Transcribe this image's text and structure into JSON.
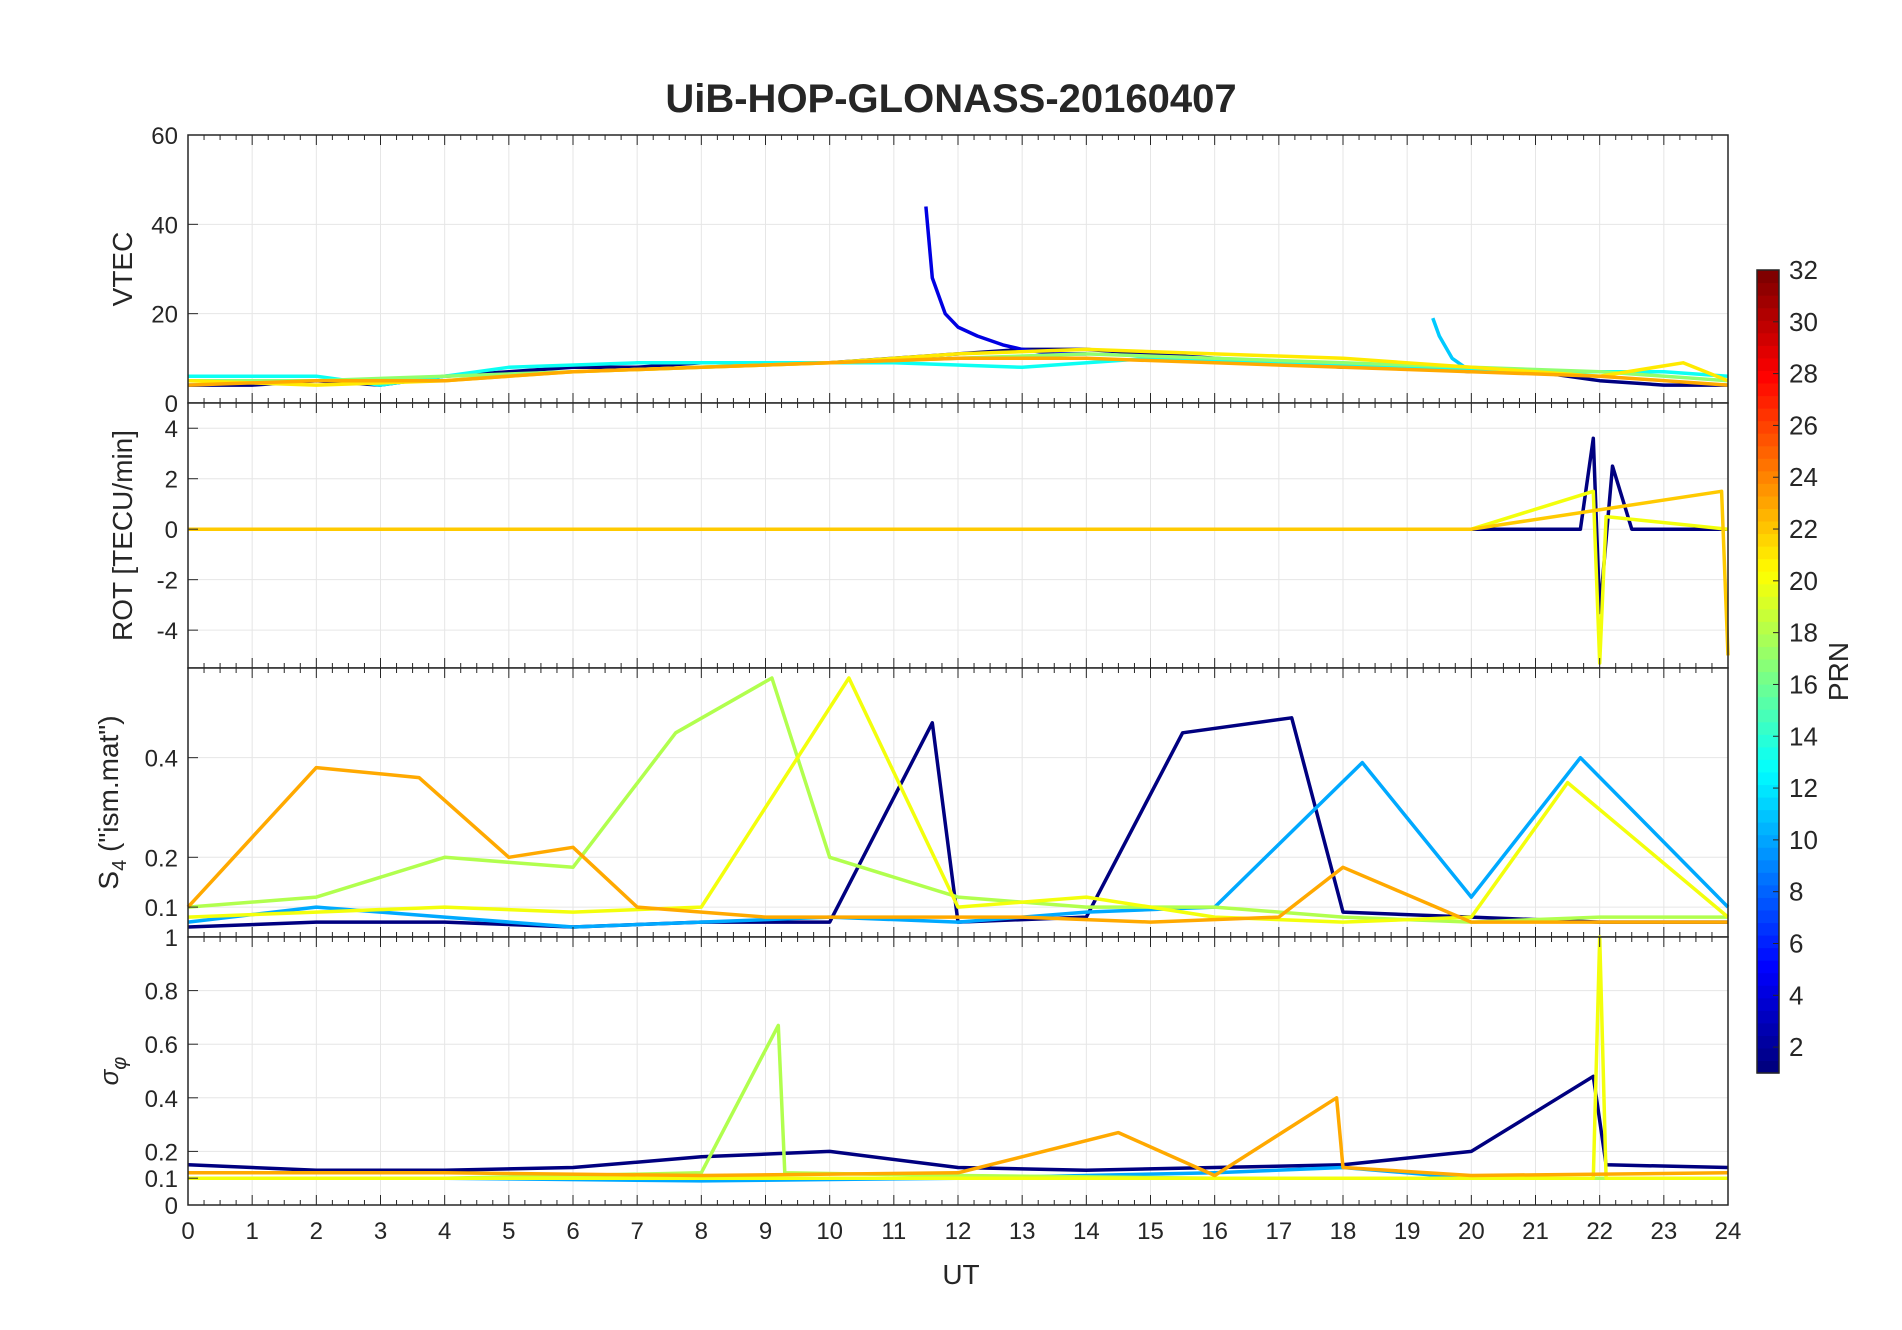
{
  "chart_data": {
    "type": "line",
    "title": "UiB-HOP-GLONASS-20160407",
    "xlabel": "UT",
    "xlim": [
      0,
      24
    ],
    "x_ticks": [
      "0",
      "1",
      "2",
      "3",
      "4",
      "5",
      "6",
      "7",
      "8",
      "9",
      "10",
      "11",
      "12",
      "13",
      "14",
      "15",
      "16",
      "17",
      "18",
      "19",
      "20",
      "21",
      "22",
      "23",
      "24"
    ],
    "grid": true,
    "colormap": "jet",
    "colorbar": {
      "label": "PRN",
      "range": [
        1,
        32
      ],
      "ticks": [
        "2",
        "4",
        "6",
        "8",
        "10",
        "12",
        "14",
        "16",
        "18",
        "20",
        "22",
        "24",
        "26",
        "28",
        "30",
        "32"
      ],
      "placement": "right"
    },
    "panels": [
      {
        "id": "vtec",
        "ylabel": "VTEC",
        "ylim": [
          0,
          60
        ],
        "y_ticks": [
          "0",
          "20",
          "40",
          "60"
        ],
        "series": [
          {
            "prn": 1,
            "x": [
              0,
              1,
              2,
              3,
              4,
              5,
              6,
              7,
              8,
              9,
              10,
              11,
              12,
              13,
              14,
              15,
              16,
              17,
              18,
              19,
              20,
              21,
              22,
              23,
              24
            ],
            "y": [
              4,
              4,
              5,
              4,
              6,
              7,
              8,
              8,
              9,
              9,
              9,
              10,
              11,
              12,
              12,
              11,
              10,
              9,
              8,
              8,
              7,
              7,
              5,
              4,
              4
            ]
          },
          {
            "prn": 4,
            "x": [
              11.5,
              11.6,
              11.8,
              12.0,
              12.3,
              12.7,
              13.0,
              13.5,
              14.0
            ],
            "y": [
              44,
              28,
              20,
              17,
              15,
              13,
              12,
              11,
              11
            ]
          },
          {
            "prn": 11,
            "x": [
              19.4,
              19.5,
              19.7,
              19.9,
              20.1
            ],
            "y": [
              19,
              15,
              10,
              8,
              7
            ]
          },
          {
            "prn": 13,
            "x": [
              0,
              2,
              3,
              4,
              5,
              7,
              9,
              11,
              13,
              15,
              17,
              19,
              21,
              23,
              24
            ],
            "y": [
              6,
              6,
              4,
              6,
              8,
              9,
              9,
              9,
              8,
              10,
              9,
              8,
              7,
              7,
              6
            ]
          },
          {
            "prn": 17,
            "x": [
              0,
              2,
              4,
              6,
              8,
              10,
              12,
              14,
              16,
              18,
              20,
              22,
              24
            ],
            "y": [
              5,
              5,
              6,
              7,
              8,
              9,
              10,
              11,
              10,
              9,
              8,
              7,
              5
            ]
          },
          {
            "prn": 21,
            "x": [
              0,
              2,
              4,
              6,
              8,
              10,
              12,
              14,
              16,
              18,
              20,
              22,
              23.3,
              24
            ],
            "y": [
              5,
              4,
              5,
              7,
              8,
              9,
              11,
              12,
              11,
              10,
              8,
              6,
              9,
              5
            ]
          },
          {
            "prn": 23,
            "x": [
              0,
              2,
              4,
              6,
              8,
              10,
              12,
              14,
              16,
              18,
              20,
              22,
              24
            ],
            "y": [
              4,
              5,
              5,
              7,
              8,
              9,
              10,
              10,
              9,
              8,
              7,
              6,
              4
            ]
          }
        ]
      },
      {
        "id": "rot",
        "ylabel": "ROT [TECU/min]",
        "ylim": [
          -5.5,
          5
        ],
        "y_ticks": [
          "-4",
          "-2",
          "0",
          "2",
          "4"
        ],
        "series": [
          {
            "prn": 1,
            "x": [
              0,
              2,
              4,
              6,
              8,
              10,
              12,
              14,
              16,
              18,
              20,
              21.7,
              21.9,
              22.0,
              22.2,
              22.5,
              24
            ],
            "y": [
              0,
              0,
              0,
              0,
              0,
              0,
              0,
              0,
              0,
              0,
              0,
              0,
              3.6,
              -3.3,
              2.5,
              0,
              0
            ]
          },
          {
            "prn": 20,
            "x": [
              0,
              4,
              8,
              12,
              16,
              20,
              21.9,
              22.0,
              22.1,
              24
            ],
            "y": [
              0,
              0,
              0,
              0,
              0,
              0,
              1.5,
              -5.3,
              0.5,
              0
            ]
          },
          {
            "prn": 22,
            "x": [
              0,
              4,
              8,
              12,
              16,
              20,
              23.9,
              24
            ],
            "y": [
              0,
              0,
              0,
              0,
              0,
              0,
              1.5,
              -5
            ]
          }
        ]
      },
      {
        "id": "s4",
        "ylabel": "S4 (\"ism.mat\")",
        "ylim": [
          0.04,
          0.58
        ],
        "y_ticks": [
          "0.1",
          "0.2",
          "0.4"
        ],
        "series": [
          {
            "prn": 1,
            "x": [
              0,
              2,
              4,
              6,
              8,
              10,
              11.6,
              12,
              14,
              15.5,
              17.2,
              18,
              20,
              22,
              24
            ],
            "y": [
              0.06,
              0.07,
              0.07,
              0.06,
              0.07,
              0.07,
              0.47,
              0.07,
              0.08,
              0.45,
              0.48,
              0.09,
              0.08,
              0.07,
              0.07
            ]
          },
          {
            "prn": 10,
            "x": [
              0,
              2,
              4,
              6,
              8,
              10,
              12,
              14,
              16,
              18.3,
              20,
              21.7,
              24
            ],
            "y": [
              0.07,
              0.1,
              0.08,
              0.06,
              0.07,
              0.08,
              0.07,
              0.09,
              0.1,
              0.39,
              0.12,
              0.4,
              0.1
            ]
          },
          {
            "prn": 18,
            "x": [
              0,
              2,
              4,
              6,
              7.6,
              9.1,
              10,
              12,
              14,
              16,
              18,
              20,
              22,
              24
            ],
            "y": [
              0.1,
              0.12,
              0.2,
              0.18,
              0.45,
              0.56,
              0.2,
              0.12,
              0.1,
              0.1,
              0.08,
              0.07,
              0.08,
              0.08
            ]
          },
          {
            "prn": 20,
            "x": [
              0,
              2,
              4,
              6,
              8,
              10.3,
              12,
              14,
              16,
              18,
              20,
              21.5,
              24
            ],
            "y": [
              0.08,
              0.09,
              0.1,
              0.09,
              0.1,
              0.56,
              0.1,
              0.12,
              0.08,
              0.07,
              0.08,
              0.35,
              0.08
            ]
          },
          {
            "prn": 23,
            "x": [
              0,
              2,
              3.6,
              5,
              6,
              7,
              9,
              11,
              13,
              15,
              17,
              18,
              20,
              22,
              24
            ],
            "y": [
              0.1,
              0.38,
              0.36,
              0.2,
              0.22,
              0.1,
              0.08,
              0.08,
              0.08,
              0.07,
              0.08,
              0.18,
              0.07,
              0.07,
              0.07
            ]
          }
        ]
      },
      {
        "id": "sigma_phi",
        "ylabel": "σ_φ",
        "ylim": [
          0,
          1
        ],
        "y_ticks": [
          "0",
          "0.1",
          "0.2",
          "0.4",
          "0.6",
          "0.8",
          "1"
        ],
        "series": [
          {
            "prn": 1,
            "x": [
              0,
              2,
              4,
              6,
              8,
              10,
              12,
              14,
              16,
              18,
              20,
              21.9,
              22.1,
              24
            ],
            "y": [
              0.15,
              0.13,
              0.13,
              0.14,
              0.18,
              0.2,
              0.14,
              0.13,
              0.14,
              0.15,
              0.2,
              0.48,
              0.15,
              0.14
            ]
          },
          {
            "prn": 10,
            "x": [
              0,
              4,
              8,
              12,
              16,
              18,
              20,
              24
            ],
            "y": [
              0.1,
              0.1,
              0.09,
              0.1,
              0.12,
              0.14,
              0.1,
              0.1
            ]
          },
          {
            "prn": 18,
            "x": [
              0,
              4,
              8,
              9.2,
              9.3,
              12,
              16,
              20,
              24
            ],
            "y": [
              0.1,
              0.1,
              0.12,
              0.67,
              0.12,
              0.11,
              0.1,
              0.1,
              0.1
            ]
          },
          {
            "prn": 20,
            "x": [
              0,
              4,
              8,
              12,
              16,
              20,
              21.9,
              22.0,
              22.1,
              24
            ],
            "y": [
              0.1,
              0.1,
              0.1,
              0.1,
              0.1,
              0.1,
              0.1,
              1.0,
              0.1,
              0.1
            ]
          },
          {
            "prn": 23,
            "x": [
              0,
              4,
              8,
              12,
              14.5,
              16,
              17.9,
              18,
              20,
              24
            ],
            "y": [
              0.12,
              0.12,
              0.11,
              0.12,
              0.27,
              0.11,
              0.4,
              0.14,
              0.11,
              0.12
            ]
          }
        ]
      }
    ]
  }
}
